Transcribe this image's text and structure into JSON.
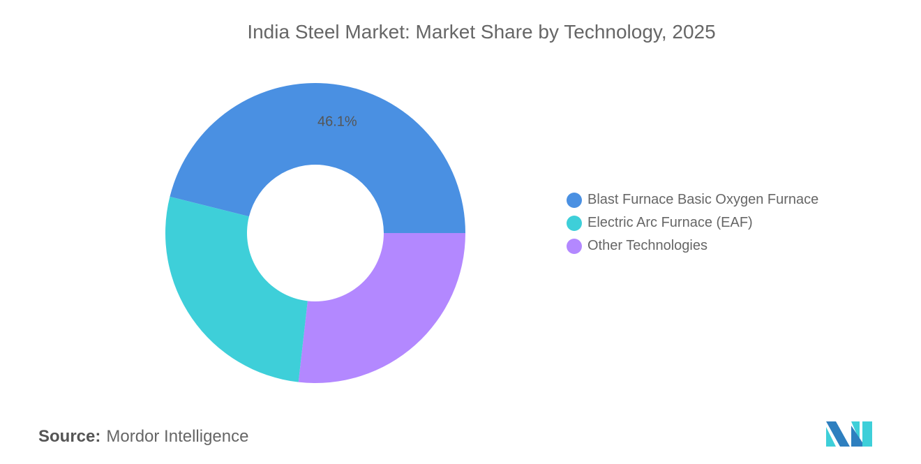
{
  "chart_data": {
    "type": "pie",
    "variant": "donut",
    "title": "India Steel Market: Market Share by Technology, 2025",
    "categories": [
      "Blast Furnace Basic Oxygen Furnace",
      "Electric Arc Furnace (EAF)",
      "Other Technologies"
    ],
    "values": [
      46.1,
      27.1,
      26.8
    ],
    "unit": "%",
    "colors": [
      "#4a90e2",
      "#3ecfd9",
      "#b388ff"
    ],
    "data_labels": [
      "46.1%"
    ],
    "legend_position": "right"
  },
  "source": {
    "label": "Source:",
    "value": "Mordor Intelligence"
  },
  "logo": {
    "colors": [
      "#2e7fbf",
      "#3ecfd9"
    ]
  }
}
